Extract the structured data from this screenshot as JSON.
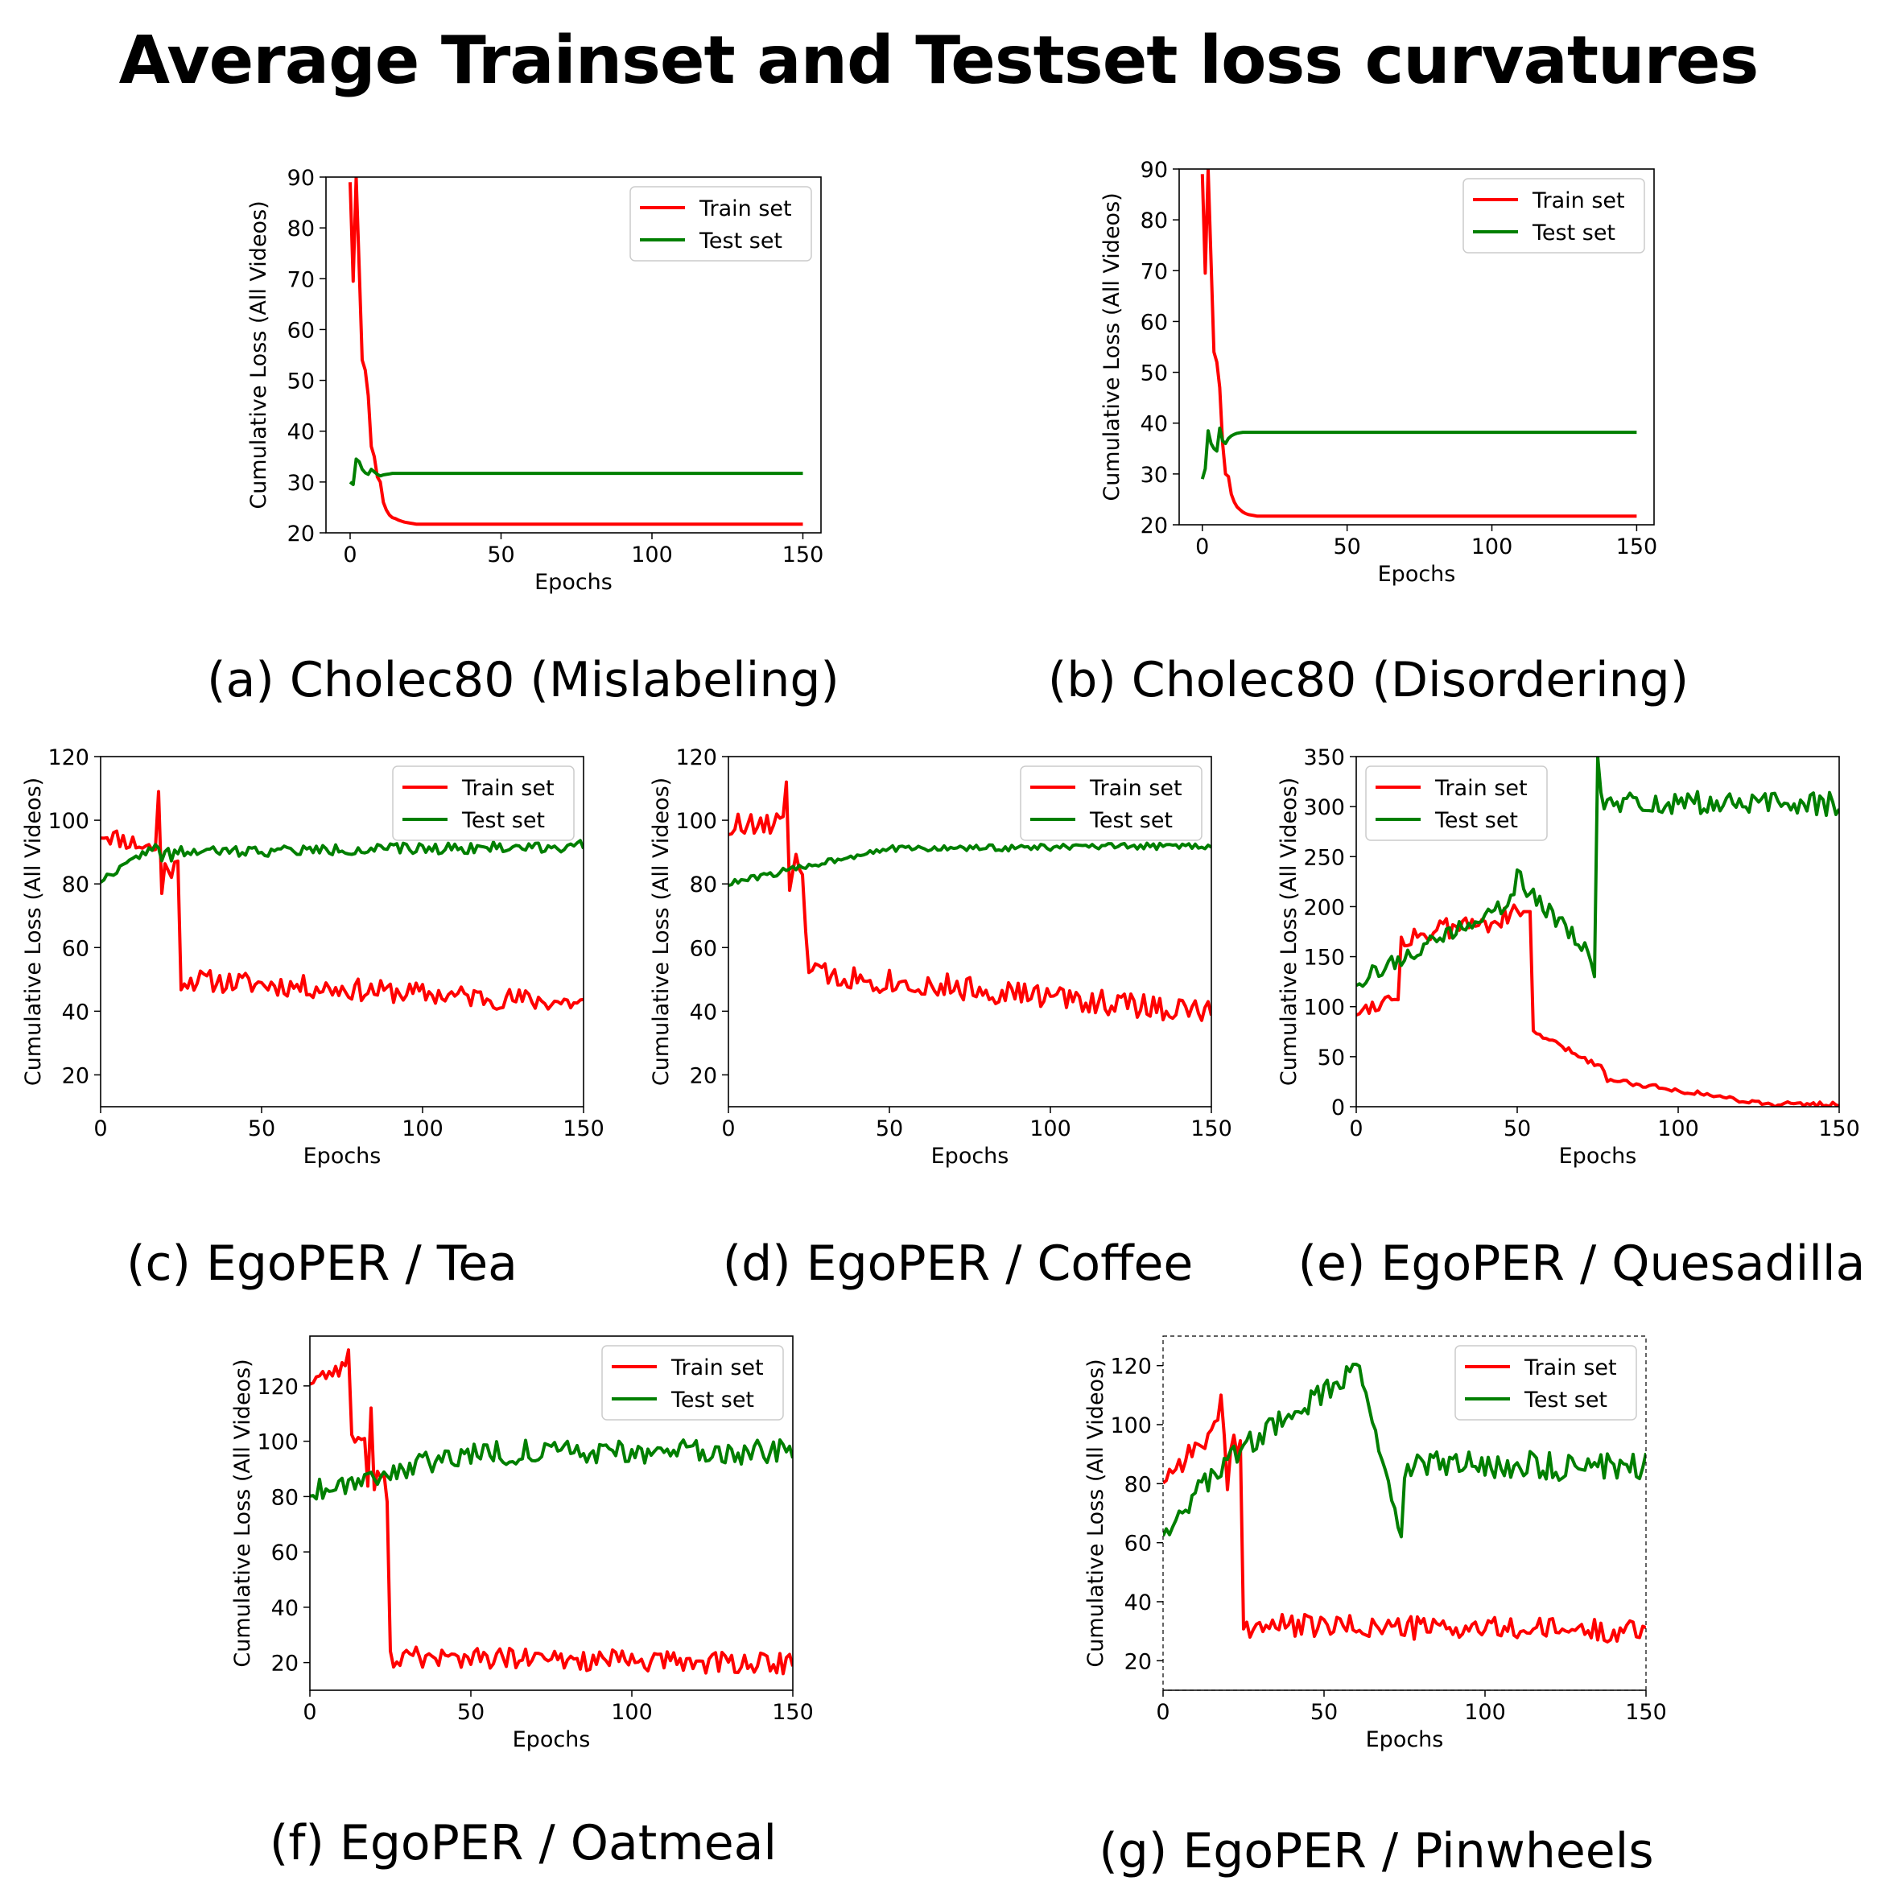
{
  "title": "Average Trainset and Testset loss curvatures",
  "colors": {
    "train": "#ff0000",
    "test": "#007f00",
    "axis": "#000000"
  },
  "chart_data": [
    {
      "id": "a",
      "type": "line",
      "caption": "(a) Cholec80 (Mislabeling)",
      "xlabel": "Epochs",
      "ylabel": "Cumulative Loss (All Videos)",
      "xlim": [
        -8,
        156
      ],
      "ylim": [
        20,
        90
      ],
      "xticks": [
        0,
        50,
        100,
        150
      ],
      "yticks": [
        20,
        30,
        40,
        50,
        60,
        70,
        80,
        90
      ],
      "legend": "top-right",
      "series": [
        {
          "name": "Train set",
          "shape": "mislabel_train",
          "final": 21.7
        },
        {
          "name": "Test set",
          "shape": "mislabel_test",
          "final": 31.7
        }
      ]
    },
    {
      "id": "b",
      "type": "line",
      "caption": "(b) Cholec80 (Disordering)",
      "xlabel": "Epochs",
      "ylabel": "Cumulative Loss (All Videos)",
      "xlim": [
        -8,
        156
      ],
      "ylim": [
        20,
        90
      ],
      "xticks": [
        0,
        50,
        100,
        150
      ],
      "yticks": [
        20,
        30,
        40,
        50,
        60,
        70,
        80,
        90
      ],
      "legend": "top-right",
      "series": [
        {
          "name": "Train set",
          "shape": "disorder_train",
          "final": 21.7
        },
        {
          "name": "Test set",
          "shape": "disorder_test",
          "final": 38.2
        }
      ]
    },
    {
      "id": "c",
      "type": "line",
      "caption": "(c) EgoPER / Tea",
      "xlabel": "Epochs",
      "ylabel": "Cumulative Loss (All Videos)",
      "xlim": [
        0,
        150
      ],
      "ylim": [
        10,
        120
      ],
      "xticks": [
        0,
        50,
        100,
        150
      ],
      "yticks": [
        20,
        40,
        60,
        80,
        100,
        120
      ],
      "legend": "top-right",
      "series": [
        {
          "name": "Train set",
          "shape": "tea_train"
        },
        {
          "name": "Test set",
          "shape": "tea_test"
        }
      ]
    },
    {
      "id": "d",
      "type": "line",
      "caption": "(d) EgoPER / Coffee",
      "xlabel": "Epochs",
      "ylabel": "Cumulative Loss (All Videos)",
      "xlim": [
        0,
        150
      ],
      "ylim": [
        10,
        120
      ],
      "xticks": [
        0,
        50,
        100,
        150
      ],
      "yticks": [
        20,
        40,
        60,
        80,
        100,
        120
      ],
      "legend": "top-right",
      "series": [
        {
          "name": "Train set",
          "shape": "coffee_train"
        },
        {
          "name": "Test set",
          "shape": "coffee_test"
        }
      ]
    },
    {
      "id": "e",
      "type": "line",
      "caption": "(e) EgoPER / Quesadilla",
      "xlabel": "Epochs",
      "ylabel": "Cumulative Loss (All Videos)",
      "xlim": [
        0,
        150
      ],
      "ylim": [
        0,
        350
      ],
      "xticks": [
        0,
        50,
        100,
        150
      ],
      "yticks": [
        0,
        50,
        100,
        150,
        200,
        250,
        300,
        350
      ],
      "legend": "top-left",
      "series": [
        {
          "name": "Train set",
          "shape": "ques_train"
        },
        {
          "name": "Test set",
          "shape": "ques_test"
        }
      ]
    },
    {
      "id": "f",
      "type": "line",
      "caption": "(f) EgoPER / Oatmeal",
      "xlabel": "Epochs",
      "ylabel": "Cumulative Loss (All Videos)",
      "xlim": [
        0,
        150
      ],
      "ylim": [
        10,
        138
      ],
      "xticks": [
        0,
        50,
        100,
        150
      ],
      "yticks": [
        20,
        40,
        60,
        80,
        100,
        120
      ],
      "legend": "top-right",
      "series": [
        {
          "name": "Train set",
          "shape": "oat_train"
        },
        {
          "name": "Test set",
          "shape": "oat_test"
        }
      ]
    },
    {
      "id": "g",
      "type": "line",
      "caption": "(g) EgoPER / Pinwheels",
      "xlabel": "Epochs",
      "ylabel": "Cumulative Loss (All Videos)",
      "xlim": [
        0,
        150
      ],
      "ylim": [
        10,
        130
      ],
      "xticks": [
        0,
        50,
        100,
        150
      ],
      "yticks": [
        20,
        40,
        60,
        80,
        100,
        120
      ],
      "legend": "top-right",
      "series": [
        {
          "name": "Train set",
          "shape": "pin_train"
        },
        {
          "name": "Test set",
          "shape": "pin_test"
        }
      ]
    }
  ]
}
